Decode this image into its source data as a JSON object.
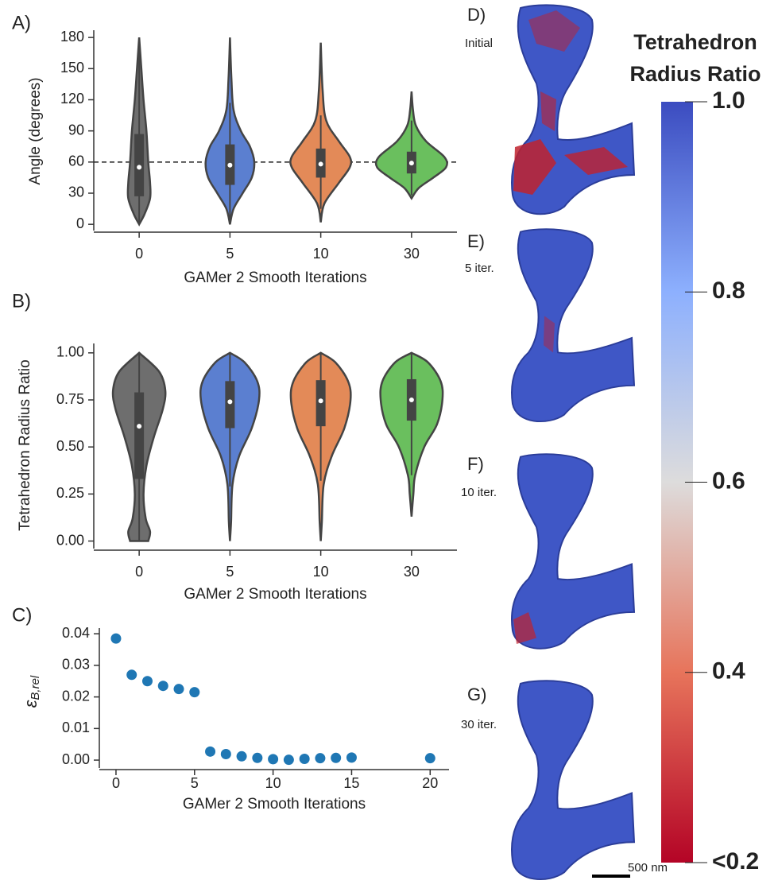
{
  "chart_data": [
    {
      "type": "violin",
      "label": "A)",
      "ylabel": "Angle (degrees)",
      "xlabel": "GAMer 2 Smooth Iterations",
      "categories": [
        "0",
        "5",
        "10",
        "30"
      ],
      "ylim": [
        -6,
        187
      ],
      "yticks": [
        0,
        30,
        60,
        90,
        120,
        150,
        180
      ],
      "reference_line": 60,
      "violins": [
        {
          "color": "#6e6e6e",
          "q1": 27,
          "median": 55,
          "q3": 87,
          "whisker": [
            0,
            170
          ],
          "density": [
            [
              0,
              0
            ],
            [
              10,
              0.15
            ],
            [
              25,
              0.3
            ],
            [
              40,
              0.3
            ],
            [
              60,
              0.25
            ],
            [
              90,
              0.2
            ],
            [
              120,
              0.12
            ],
            [
              150,
              0.06
            ],
            [
              180,
              0
            ]
          ]
        },
        {
          "color": "#5b7fd0",
          "q1": 38,
          "median": 57,
          "q3": 77,
          "whisker": [
            2,
            117
          ],
          "density": [
            [
              0,
              0
            ],
            [
              15,
              0.1
            ],
            [
              30,
              0.35
            ],
            [
              45,
              0.6
            ],
            [
              60,
              0.67
            ],
            [
              75,
              0.55
            ],
            [
              90,
              0.3
            ],
            [
              110,
              0.1
            ],
            [
              140,
              0.04
            ],
            [
              180,
              0
            ]
          ]
        },
        {
          "color": "#e38a58",
          "q1": 45,
          "median": 58,
          "q3": 73,
          "whisker": [
            15,
            105
          ],
          "density": [
            [
              2,
              0
            ],
            [
              20,
              0.1
            ],
            [
              40,
              0.5
            ],
            [
              55,
              0.8
            ],
            [
              65,
              0.8
            ],
            [
              80,
              0.5
            ],
            [
              100,
              0.15
            ],
            [
              130,
              0.05
            ],
            [
              175,
              0
            ]
          ]
        },
        {
          "color": "#6abf5e",
          "q1": 49,
          "median": 59,
          "q3": 70,
          "whisker": [
            28,
            100
          ],
          "density": [
            [
              25,
              0
            ],
            [
              35,
              0.2
            ],
            [
              45,
              0.6
            ],
            [
              55,
              0.95
            ],
            [
              65,
              0.9
            ],
            [
              80,
              0.4
            ],
            [
              95,
              0.12
            ],
            [
              110,
              0.04
            ],
            [
              128,
              0
            ]
          ]
        }
      ]
    },
    {
      "type": "violin",
      "label": "B)",
      "ylabel": "Tetrahedron Radius Ratio",
      "xlabel": "GAMer 2 Smooth Iterations",
      "categories": [
        "0",
        "5",
        "10",
        "30"
      ],
      "ylim": [
        -0.04,
        1.05
      ],
      "yticks": [
        {
          "value": 0,
          "label": "0.00"
        },
        0.25,
        {
          "value": 0.5,
          "label": "0.50"
        },
        0.75,
        {
          "value": 1,
          "label": "1.00"
        }
      ],
      "violins": [
        {
          "color": "#6e6e6e",
          "q1": 0.33,
          "median": 0.61,
          "q3": 0.79,
          "whisker": [
            0,
            1
          ],
          "density": [
            [
              0,
              0.25
            ],
            [
              0.05,
              0.3
            ],
            [
              0.12,
              0.18
            ],
            [
              0.25,
              0.12
            ],
            [
              0.4,
              0.2
            ],
            [
              0.55,
              0.4
            ],
            [
              0.7,
              0.65
            ],
            [
              0.8,
              0.72
            ],
            [
              0.9,
              0.55
            ],
            [
              1,
              0
            ]
          ]
        },
        {
          "color": "#5b7fd0",
          "q1": 0.6,
          "median": 0.74,
          "q3": 0.85,
          "whisker": [
            0.29,
            1
          ],
          "density": [
            [
              0,
              0
            ],
            [
              0.1,
              0.03
            ],
            [
              0.3,
              0.07
            ],
            [
              0.45,
              0.25
            ],
            [
              0.6,
              0.6
            ],
            [
              0.75,
              0.8
            ],
            [
              0.85,
              0.75
            ],
            [
              0.95,
              0.4
            ],
            [
              1,
              0
            ]
          ]
        },
        {
          "color": "#e38a58",
          "q1": 0.61,
          "median": 0.745,
          "q3": 0.855,
          "whisker": [
            0.32,
            1
          ],
          "density": [
            [
              0,
              0
            ],
            [
              0.1,
              0.03
            ],
            [
              0.3,
              0.08
            ],
            [
              0.45,
              0.3
            ],
            [
              0.6,
              0.65
            ],
            [
              0.75,
              0.82
            ],
            [
              0.85,
              0.75
            ],
            [
              0.95,
              0.4
            ],
            [
              1,
              0
            ]
          ]
        },
        {
          "color": "#6abf5e",
          "q1": 0.64,
          "median": 0.75,
          "q3": 0.86,
          "whisker": [
            0.35,
            1
          ],
          "density": [
            [
              0.13,
              0
            ],
            [
              0.25,
              0.05
            ],
            [
              0.35,
              0.1
            ],
            [
              0.5,
              0.35
            ],
            [
              0.62,
              0.7
            ],
            [
              0.75,
              0.85
            ],
            [
              0.85,
              0.8
            ],
            [
              0.95,
              0.45
            ],
            [
              1,
              0
            ]
          ]
        }
      ]
    },
    {
      "type": "scatter",
      "label": "C)",
      "ylabel": "ε",
      "ylabel_sub": "B,rel",
      "xlabel": "GAMer 2 Smooth Iterations",
      "color": "#1f77b4",
      "x": [
        0,
        1,
        2,
        3,
        4,
        5,
        6,
        7,
        8,
        9,
        10,
        11,
        12,
        13,
        14,
        15,
        20
      ],
      "values": [
        0.0385,
        0.027,
        0.025,
        0.0235,
        0.0225,
        0.0215,
        0.0027,
        0.0019,
        0.0012,
        0.0007,
        0.0003,
        0.0001,
        0.0004,
        0.0006,
        0.0007,
        0.0008,
        0.0006
      ],
      "xlim": [
        -1.06,
        21.2
      ],
      "xticks": [
        0,
        5,
        10,
        15,
        20
      ],
      "ylim": [
        -0.0025,
        0.0418
      ],
      "yticks": [
        {
          "value": 0,
          "label": "0.00"
        },
        0.01,
        0.02,
        0.03,
        0.04
      ]
    },
    {
      "type": "colorbar",
      "title_lines": [
        "Tetrahedron",
        "Radius Ratio"
      ],
      "colors": [
        "#b40426",
        "#e7745b",
        "#dddcdc",
        "#8db0fe",
        "#3b4cc0"
      ],
      "ylim": [
        0.2,
        1.0
      ],
      "yticks": [
        {
          "value": 1,
          "label": "1.0"
        },
        0.8,
        0.6,
        0.4,
        {
          "value": 0.2,
          "label": "<0.2"
        }
      ]
    }
  ],
  "mesh_panels": [
    {
      "label": "D)",
      "caption": "Initial"
    },
    {
      "label": "E)",
      "caption": "5 iter."
    },
    {
      "label": "F)",
      "caption": "10 iter."
    },
    {
      "label": "G)",
      "caption": "30 iter."
    }
  ],
  "scale_bar": "500 nm"
}
